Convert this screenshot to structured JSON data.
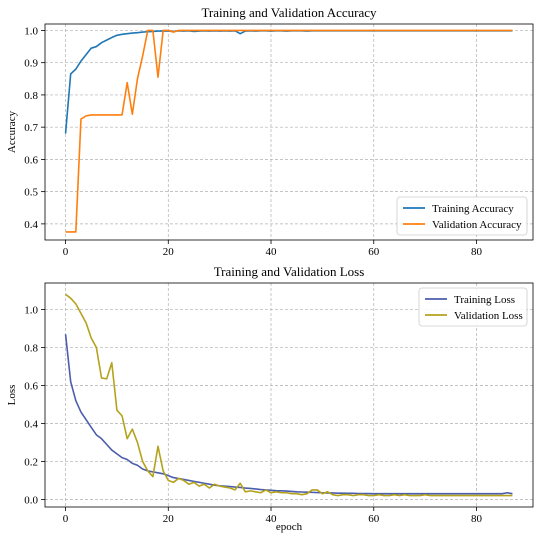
{
  "chart_data": [
    {
      "type": "line",
      "title": "Training and Validation Accuracy",
      "xlabel": "",
      "ylabel": "Accuracy",
      "xlim": [
        -4,
        91
      ],
      "ylim": [
        0.35,
        1.02
      ],
      "xticks": [
        0,
        20,
        40,
        60,
        80
      ],
      "yticks": [
        0.4,
        0.5,
        0.6,
        0.7,
        0.8,
        0.9,
        1.0
      ],
      "ytick_labels": [
        "0.4",
        "0.5",
        "0.6",
        "0.7",
        "0.8",
        "0.9",
        "1.0"
      ],
      "grid": true,
      "legend_position": "lower-right",
      "series": [
        {
          "name": "Training Accuracy",
          "color": "#1f77b4",
          "x": [
            0,
            1,
            2,
            3,
            4,
            5,
            6,
            7,
            8,
            9,
            10,
            11,
            12,
            13,
            14,
            15,
            16,
            17,
            18,
            19,
            20,
            21,
            22,
            23,
            24,
            25,
            26,
            27,
            28,
            29,
            30,
            31,
            32,
            33,
            34,
            35,
            36,
            37,
            38,
            39,
            40,
            41,
            42,
            43,
            44,
            45,
            46,
            47,
            48,
            49,
            50,
            51,
            52,
            53,
            54,
            55,
            56,
            57,
            58,
            59,
            60,
            61,
            62,
            63,
            64,
            65,
            66,
            67,
            68,
            69,
            70,
            71,
            72,
            73,
            74,
            75,
            76,
            77,
            78,
            79,
            80,
            81,
            82,
            83,
            84,
            85,
            86,
            87
          ],
          "y": [
            0.68,
            0.865,
            0.88,
            0.905,
            0.925,
            0.945,
            0.95,
            0.962,
            0.97,
            0.978,
            0.985,
            0.988,
            0.99,
            0.992,
            0.993,
            0.995,
            0.996,
            0.997,
            0.998,
            0.998,
            0.998,
            0.997,
            0.999,
            0.998,
            0.999,
            0.997,
            0.998,
            0.999,
            0.998,
            0.999,
            0.998,
            0.999,
            0.998,
            0.999,
            0.99,
            0.998,
            0.999,
            0.998,
            0.999,
            0.999,
            0.998,
            0.999,
            0.999,
            0.998,
            0.999,
            0.999,
            0.999,
            0.998,
            0.999,
            0.999,
            0.999,
            0.999,
            0.999,
            0.999,
            0.999,
            0.999,
            0.999,
            0.999,
            0.999,
            0.999,
            0.999,
            0.999,
            0.999,
            0.999,
            0.999,
            0.999,
            0.999,
            0.999,
            0.999,
            0.999,
            0.999,
            0.999,
            0.999,
            0.999,
            0.999,
            0.999,
            0.999,
            0.999,
            0.999,
            0.999,
            0.999,
            0.999,
            0.999,
            0.999,
            0.999,
            0.999,
            0.999,
            0.999
          ]
        },
        {
          "name": "Validation Accuracy",
          "color": "#ff7f0e",
          "x": [
            0,
            1,
            2,
            3,
            4,
            5,
            6,
            7,
            8,
            9,
            10,
            11,
            12,
            13,
            14,
            15,
            16,
            17,
            18,
            19,
            20,
            21,
            22,
            23,
            24,
            25,
            26,
            27,
            28,
            29,
            30,
            31,
            32,
            33,
            34,
            35,
            36,
            37,
            38,
            39,
            40,
            41,
            42,
            43,
            44,
            45,
            46,
            47,
            48,
            49,
            50,
            51,
            52,
            53,
            54,
            55,
            56,
            57,
            58,
            59,
            60,
            61,
            62,
            63,
            64,
            65,
            66,
            67,
            68,
            69,
            70,
            71,
            72,
            73,
            74,
            75,
            76,
            77,
            78,
            79,
            80,
            81,
            82,
            83,
            84,
            85,
            86,
            87
          ],
          "y": [
            0.375,
            0.375,
            0.375,
            0.725,
            0.735,
            0.738,
            0.738,
            0.738,
            0.738,
            0.738,
            0.738,
            0.738,
            0.838,
            0.74,
            0.85,
            0.92,
            1.0,
            1.0,
            0.855,
            1.0,
            1.0,
            0.995,
            1.0,
            1.0,
            1.0,
            1.0,
            1.0,
            1.0,
            1.0,
            1.0,
            1.0,
            1.0,
            1.0,
            1.0,
            1.0,
            1.0,
            1.0,
            1.0,
            1.0,
            1.0,
            1.0,
            1.0,
            1.0,
            1.0,
            1.0,
            1.0,
            1.0,
            1.0,
            1.0,
            1.0,
            1.0,
            1.0,
            1.0,
            1.0,
            1.0,
            1.0,
            1.0,
            1.0,
            1.0,
            1.0,
            1.0,
            1.0,
            1.0,
            1.0,
            1.0,
            1.0,
            1.0,
            1.0,
            1.0,
            1.0,
            1.0,
            1.0,
            1.0,
            1.0,
            1.0,
            1.0,
            1.0,
            1.0,
            1.0,
            1.0,
            1.0,
            1.0,
            1.0,
            1.0,
            1.0,
            1.0,
            1.0,
            1.0
          ]
        }
      ]
    },
    {
      "type": "line",
      "title": "Training and Validation Loss",
      "xlabel": "epoch",
      "ylabel": "Loss",
      "xlim": [
        -4,
        91
      ],
      "ylim": [
        -0.04,
        1.14
      ],
      "xticks": [
        0,
        20,
        40,
        60,
        80
      ],
      "yticks": [
        0.0,
        0.2,
        0.4,
        0.6,
        0.8,
        1.0
      ],
      "ytick_labels": [
        "0.0",
        "0.2",
        "0.4",
        "0.6",
        "0.8",
        "1.0"
      ],
      "grid": true,
      "legend_position": "upper-right",
      "series": [
        {
          "name": "Training Loss",
          "color": "#4c5eab",
          "x": [
            0,
            1,
            2,
            3,
            4,
            5,
            6,
            7,
            8,
            9,
            10,
            11,
            12,
            13,
            14,
            15,
            16,
            17,
            18,
            19,
            20,
            21,
            22,
            23,
            24,
            25,
            26,
            27,
            28,
            29,
            30,
            31,
            32,
            33,
            34,
            35,
            36,
            37,
            38,
            39,
            40,
            41,
            42,
            43,
            44,
            45,
            46,
            47,
            48,
            49,
            50,
            51,
            52,
            53,
            54,
            55,
            56,
            57,
            58,
            59,
            60,
            61,
            62,
            63,
            64,
            65,
            66,
            67,
            68,
            69,
            70,
            71,
            72,
            73,
            74,
            75,
            76,
            77,
            78,
            79,
            80,
            81,
            82,
            83,
            84,
            85,
            86,
            87
          ],
          "y": [
            0.87,
            0.62,
            0.52,
            0.46,
            0.42,
            0.38,
            0.34,
            0.32,
            0.29,
            0.26,
            0.24,
            0.22,
            0.21,
            0.19,
            0.18,
            0.16,
            0.15,
            0.145,
            0.14,
            0.135,
            0.125,
            0.115,
            0.11,
            0.105,
            0.1,
            0.095,
            0.09,
            0.085,
            0.08,
            0.075,
            0.072,
            0.07,
            0.068,
            0.065,
            0.063,
            0.06,
            0.058,
            0.055,
            0.052,
            0.05,
            0.048,
            0.046,
            0.045,
            0.044,
            0.042,
            0.04,
            0.039,
            0.038,
            0.037,
            0.036,
            0.035,
            0.034,
            0.034,
            0.033,
            0.033,
            0.032,
            0.032,
            0.031,
            0.031,
            0.031,
            0.03,
            0.03,
            0.03,
            0.03,
            0.03,
            0.03,
            0.03,
            0.03,
            0.03,
            0.03,
            0.03,
            0.03,
            0.03,
            0.03,
            0.03,
            0.03,
            0.03,
            0.03,
            0.03,
            0.03,
            0.03,
            0.03,
            0.03,
            0.03,
            0.03,
            0.03,
            0.035,
            0.03
          ]
        },
        {
          "name": "Validation Loss",
          "color": "#b5a21c",
          "x": [
            0,
            1,
            2,
            3,
            4,
            5,
            6,
            7,
            8,
            9,
            10,
            11,
            12,
            13,
            14,
            15,
            16,
            17,
            18,
            19,
            20,
            21,
            22,
            23,
            24,
            25,
            26,
            27,
            28,
            29,
            30,
            31,
            32,
            33,
            34,
            35,
            36,
            37,
            38,
            39,
            40,
            41,
            42,
            43,
            44,
            45,
            46,
            47,
            48,
            49,
            50,
            51,
            52,
            53,
            54,
            55,
            56,
            57,
            58,
            59,
            60,
            61,
            62,
            63,
            64,
            65,
            66,
            67,
            68,
            69,
            70,
            71,
            72,
            73,
            74,
            75,
            76,
            77,
            78,
            79,
            80,
            81,
            82,
            83,
            84,
            85,
            86,
            87
          ],
          "y": [
            1.08,
            1.06,
            1.03,
            0.98,
            0.93,
            0.85,
            0.8,
            0.64,
            0.635,
            0.72,
            0.47,
            0.44,
            0.32,
            0.37,
            0.3,
            0.2,
            0.15,
            0.12,
            0.28,
            0.15,
            0.1,
            0.09,
            0.11,
            0.1,
            0.08,
            0.09,
            0.07,
            0.08,
            0.06,
            0.08,
            0.07,
            0.065,
            0.06,
            0.05,
            0.085,
            0.04,
            0.045,
            0.04,
            0.035,
            0.05,
            0.035,
            0.04,
            0.035,
            0.035,
            0.03,
            0.03,
            0.025,
            0.03,
            0.05,
            0.05,
            0.03,
            0.04,
            0.025,
            0.02,
            0.025,
            0.025,
            0.02,
            0.025,
            0.025,
            0.02,
            0.02,
            0.025,
            0.02,
            0.02,
            0.025,
            0.02,
            0.025,
            0.02,
            0.02,
            0.02,
            0.025,
            0.02,
            0.02,
            0.02,
            0.02,
            0.02,
            0.02,
            0.02,
            0.02,
            0.02,
            0.02,
            0.02,
            0.02,
            0.02,
            0.02,
            0.02,
            0.02,
            0.02
          ]
        }
      ]
    }
  ]
}
